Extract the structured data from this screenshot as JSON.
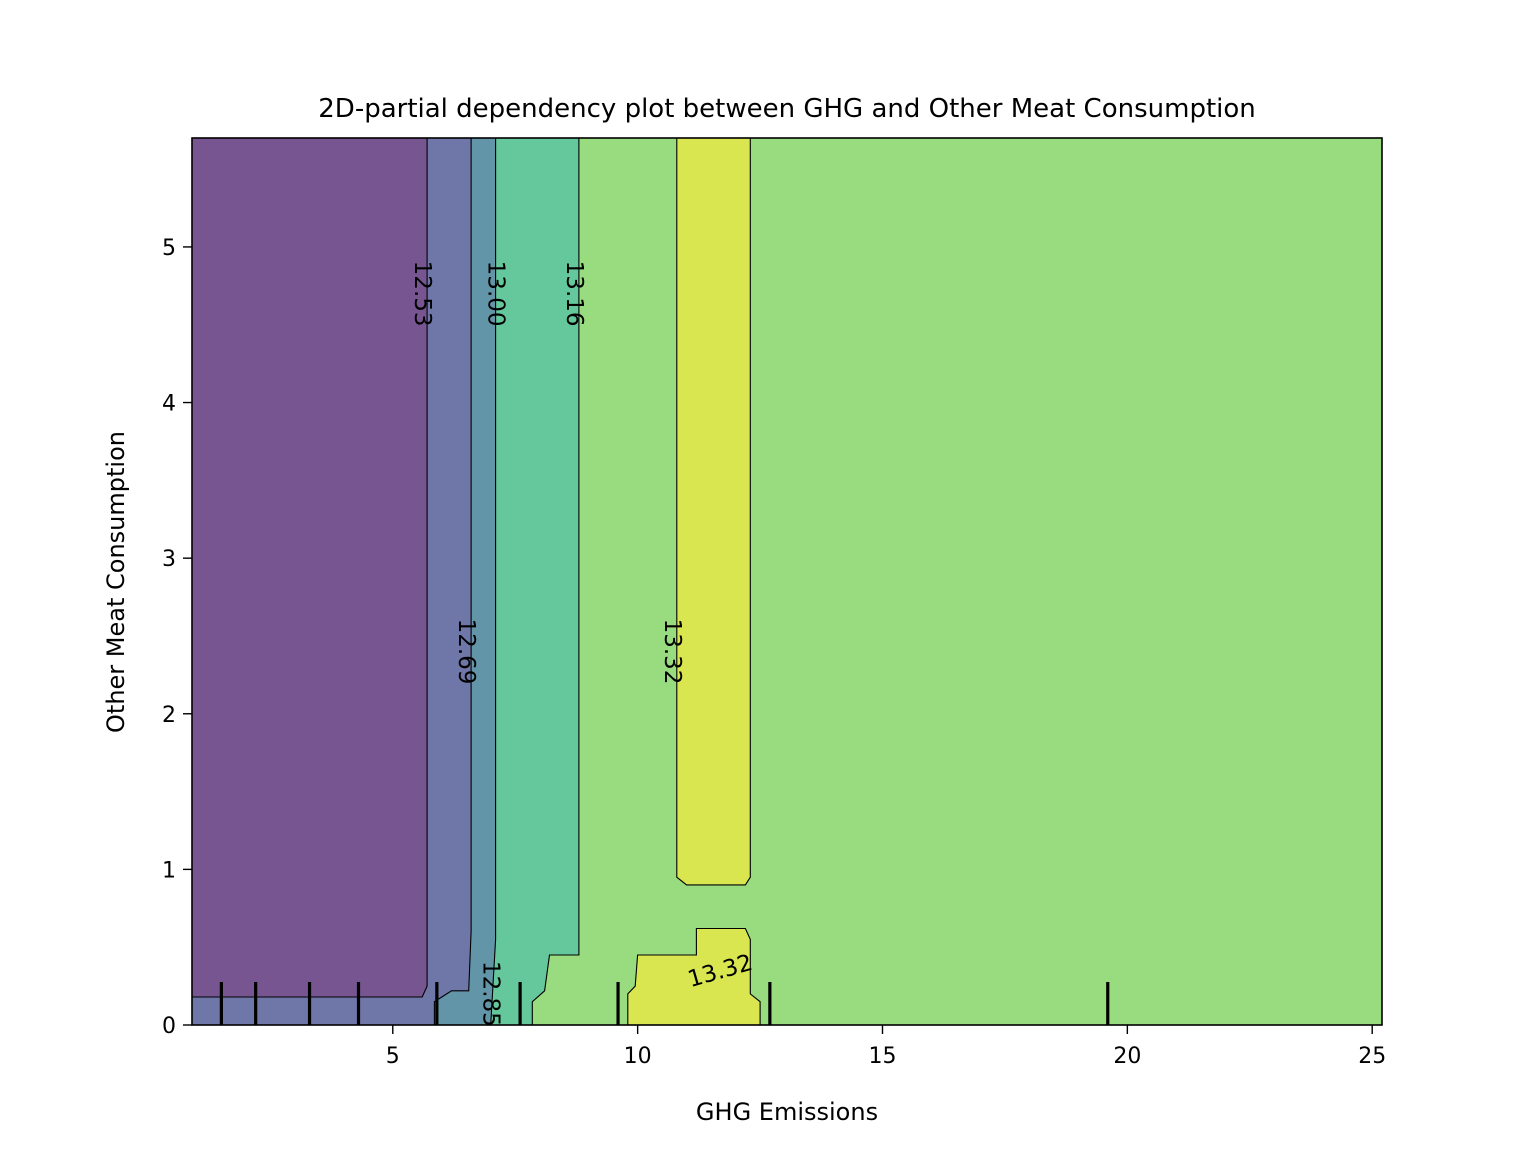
{
  "chart_data": {
    "type": "contour",
    "title": "2D-partial dependency plot between GHG and Other Meat Consumption",
    "xlabel": "GHG Emissions",
    "ylabel": "Other Meat Consumption",
    "xlim": [
      0.9,
      25.2
    ],
    "ylim": [
      0,
      5.7
    ],
    "xticks": [
      5,
      10,
      15,
      20,
      25
    ],
    "yticks": [
      0,
      1,
      2,
      3,
      4,
      5
    ],
    "levels": [
      12.53,
      12.69,
      12.85,
      13.0,
      13.16,
      13.32
    ],
    "level_labels": [
      "12.53",
      "12.69",
      "12.85",
      "13.00",
      "13.16",
      "13.32"
    ],
    "contour_labels": [
      {
        "text": "12.53",
        "x": 5.7,
        "y": 4.7
      },
      {
        "text": "13.00",
        "x": 7.2,
        "y": 4.7
      },
      {
        "text": "13.16",
        "x": 8.8,
        "y": 4.7
      },
      {
        "text": "12.69",
        "x": 6.6,
        "y": 2.4
      },
      {
        "text": "13.32",
        "x": 10.8,
        "y": 2.4
      },
      {
        "text": "13.32",
        "x": 10.7,
        "y": 0.35
      },
      {
        "text": "12.85",
        "x": 7.0,
        "y": 0.2
      }
    ],
    "deciles_x": [
      1.5,
      2.2,
      3.3,
      4.3,
      5.9,
      7.6,
      9.6,
      12.7,
      19.6
    ],
    "colors": {
      "band_12.45": "#765591",
      "band_12.61": "#6e77a7",
      "band_12.77": "#6395a8",
      "band_13.08": "#64c89c",
      "band_13.24": "#98dc7f",
      "band_13.40": "#d9e650"
    }
  }
}
